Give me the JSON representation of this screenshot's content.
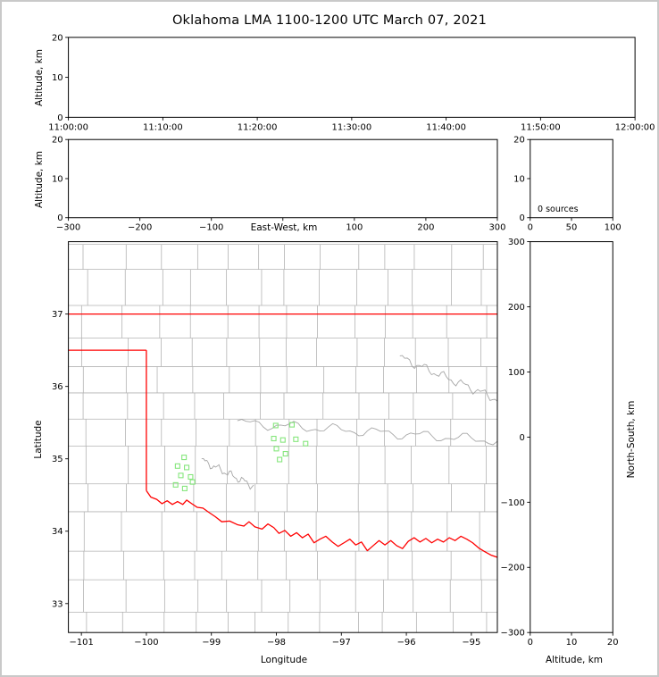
{
  "title": "Oklahoma LMA 1100-1200 UTC March 07, 2021",
  "colors": {
    "county_lines": "#b3b3b3",
    "river_lines": "#a6a6a6",
    "state_border": "#ff0000",
    "station_marker": "#85e67c",
    "axis": "#000000",
    "background": "#ffffff",
    "frame_border": "#c9c9c9"
  },
  "chart_data": [
    {
      "id": "time_height_panel",
      "type": "scatter",
      "ylabel": "Altitude, km",
      "ylim": [
        0,
        20
      ],
      "yticks": [
        0,
        10,
        20
      ],
      "xtick_labels": [
        "11:00:00",
        "11:10:00",
        "11:20:00",
        "11:30:00",
        "11:40:00",
        "11:50:00",
        "12:00:00"
      ],
      "points": []
    },
    {
      "id": "ew_height_panel",
      "type": "scatter",
      "xlabel": "East-West, km",
      "ylabel": "Altitude, km",
      "xlim": [
        -300,
        300
      ],
      "xticks": [
        -300,
        -200,
        -100,
        0,
        100,
        200,
        300
      ],
      "xtick_labels": [
        "−300",
        "−200",
        "−100",
        "",
        "100",
        "200",
        "300"
      ],
      "ylim": [
        0,
        20
      ],
      "yticks": [
        0,
        10,
        20
      ],
      "points": []
    },
    {
      "id": "altitude_histogram_panel",
      "type": "line",
      "annotation": "0 sources",
      "xlim": [
        0,
        100
      ],
      "xticks": [
        0,
        50,
        100
      ],
      "xtick_labels": [
        "0",
        "50",
        "100"
      ],
      "ylim": [
        0,
        20
      ],
      "yticks": [
        0,
        10,
        20
      ],
      "values": []
    },
    {
      "id": "plan_view_map",
      "type": "scatter",
      "xlabel": "Longitude",
      "ylabel": "Latitude",
      "xlim": [
        -101.2,
        -94.6
      ],
      "xticks": [
        -101,
        -100,
        -99,
        -98,
        -97,
        -96,
        -95
      ],
      "xtick_labels": [
        "−101",
        "−100",
        "−99",
        "−98",
        "−97",
        "−96",
        "−95"
      ],
      "ylim": [
        32.6,
        38.0
      ],
      "yticks": [
        33,
        34,
        35,
        36,
        37
      ],
      "ytick_labels": [
        "33",
        "34",
        "35",
        "36",
        "37"
      ],
      "stations": [
        [
          -98.01,
          35.46
        ],
        [
          -97.76,
          35.47
        ],
        [
          -98.04,
          35.28
        ],
        [
          -97.9,
          35.26
        ],
        [
          -97.7,
          35.27
        ],
        [
          -97.55,
          35.21
        ],
        [
          -98.0,
          35.14
        ],
        [
          -97.86,
          35.07
        ],
        [
          -97.95,
          34.99
        ],
        [
          -99.42,
          35.02
        ],
        [
          -99.52,
          34.9
        ],
        [
          -99.38,
          34.88
        ],
        [
          -99.47,
          34.77
        ],
        [
          -99.32,
          34.75
        ],
        [
          -99.55,
          34.64
        ],
        [
          -99.41,
          34.59
        ],
        [
          -99.29,
          34.68
        ]
      ],
      "state_boundary": {
        "north_border": [
          [
            -101.2,
            37.0
          ],
          [
            -94.6,
            37.0
          ]
        ],
        "panhandle_south_border": [
          [
            -101.2,
            36.5
          ],
          [
            -100.0,
            36.5
          ]
        ],
        "west_border": [
          [
            -100.0,
            36.5
          ],
          [
            -100.0,
            34.56
          ]
        ],
        "red_river_south_border": [
          [
            -100.0,
            34.56
          ],
          [
            -99.93,
            34.47
          ],
          [
            -99.84,
            34.44
          ],
          [
            -99.76,
            34.38
          ],
          [
            -99.68,
            34.42
          ],
          [
            -99.6,
            34.37
          ],
          [
            -99.52,
            34.41
          ],
          [
            -99.44,
            34.37
          ],
          [
            -99.38,
            34.43
          ],
          [
            -99.3,
            34.38
          ],
          [
            -99.22,
            34.33
          ],
          [
            -99.13,
            34.32
          ],
          [
            -99.04,
            34.26
          ],
          [
            -98.94,
            34.2
          ],
          [
            -98.84,
            34.13
          ],
          [
            -98.72,
            34.14
          ],
          [
            -98.6,
            34.09
          ],
          [
            -98.5,
            34.07
          ],
          [
            -98.42,
            34.13
          ],
          [
            -98.33,
            34.06
          ],
          [
            -98.22,
            34.03
          ],
          [
            -98.13,
            34.1
          ],
          [
            -98.04,
            34.05
          ],
          [
            -97.96,
            33.97
          ],
          [
            -97.87,
            34.01
          ],
          [
            -97.78,
            33.93
          ],
          [
            -97.69,
            33.98
          ],
          [
            -97.6,
            33.91
          ],
          [
            -97.51,
            33.96
          ],
          [
            -97.42,
            33.84
          ],
          [
            -97.33,
            33.89
          ],
          [
            -97.24,
            33.93
          ],
          [
            -97.14,
            33.85
          ],
          [
            -97.05,
            33.79
          ],
          [
            -96.96,
            33.84
          ],
          [
            -96.87,
            33.89
          ],
          [
            -96.78,
            33.81
          ],
          [
            -96.69,
            33.85
          ],
          [
            -96.6,
            33.73
          ],
          [
            -96.51,
            33.8
          ],
          [
            -96.42,
            33.87
          ],
          [
            -96.33,
            33.81
          ],
          [
            -96.24,
            33.87
          ],
          [
            -96.15,
            33.8
          ],
          [
            -96.06,
            33.76
          ],
          [
            -95.97,
            33.86
          ],
          [
            -95.88,
            33.91
          ],
          [
            -95.79,
            33.85
          ],
          [
            -95.7,
            33.9
          ],
          [
            -95.61,
            33.84
          ],
          [
            -95.52,
            33.89
          ],
          [
            -95.43,
            33.85
          ],
          [
            -95.34,
            33.91
          ],
          [
            -95.25,
            33.87
          ],
          [
            -95.16,
            33.93
          ],
          [
            -95.07,
            33.89
          ],
          [
            -94.98,
            33.84
          ],
          [
            -94.89,
            33.77
          ],
          [
            -94.8,
            33.72
          ],
          [
            -94.7,
            33.67
          ],
          [
            -94.6,
            33.64
          ]
        ]
      }
    },
    {
      "id": "ns_height_panel",
      "type": "scatter",
      "xlabel": "Altitude, km",
      "ylabel": "North-South, km",
      "xlim": [
        0,
        20
      ],
      "xticks": [
        0,
        10,
        20
      ],
      "xtick_labels": [
        "0",
        "10",
        "20"
      ],
      "ylim": [
        -300,
        300
      ],
      "yticks": [
        -300,
        -200,
        -100,
        0,
        100,
        200,
        300
      ],
      "ytick_labels": [
        "−300",
        "−200",
        "−100",
        "0",
        "100",
        "200",
        "300"
      ],
      "points": []
    }
  ]
}
